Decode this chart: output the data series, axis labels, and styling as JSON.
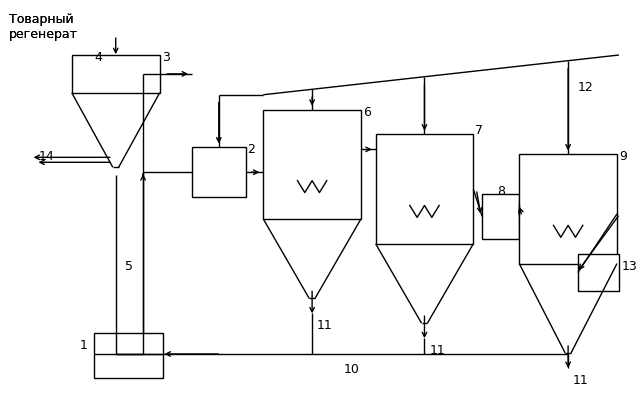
{
  "bg_color": "#ffffff",
  "line_color": "#000000",
  "text_color": "#000000",
  "title_text": "Товарный\nрегенерат",
  "label_font_size": 9
}
